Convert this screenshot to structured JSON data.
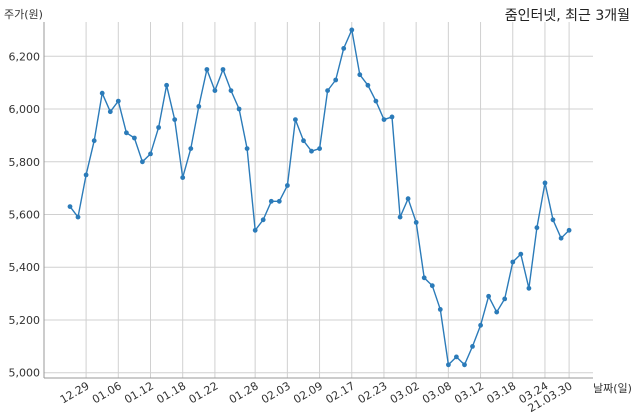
{
  "chart_data": {
    "type": "line",
    "title": "줌인터넷, 최근 3개월",
    "ylabel": "주가(원)",
    "xlabel": "날짜(일)",
    "ylim": [
      4980,
      6330
    ],
    "yticks": [
      5000,
      5200,
      5400,
      5600,
      5800,
      6000,
      6200
    ],
    "ytick_labels": [
      "5,000",
      "5,200",
      "5,400",
      "5,600",
      "5,800",
      "6,000",
      "6,200"
    ],
    "xticks": [
      {
        "index": 2,
        "label": "12.29"
      },
      {
        "index": 6,
        "label": "01.06"
      },
      {
        "index": 10,
        "label": "01.12"
      },
      {
        "index": 14,
        "label": "01.18"
      },
      {
        "index": 18,
        "label": "01.22"
      },
      {
        "index": 23,
        "label": "01.28"
      },
      {
        "index": 27,
        "label": "02.03"
      },
      {
        "index": 31,
        "label": "02.09"
      },
      {
        "index": 35,
        "label": "02.17"
      },
      {
        "index": 39,
        "label": "02.23"
      },
      {
        "index": 43,
        "label": "03.02"
      },
      {
        "index": 47,
        "label": "03.08"
      },
      {
        "index": 51,
        "label": "03.12"
      },
      {
        "index": 55,
        "label": "03.18"
      },
      {
        "index": 59,
        "label": "03.24"
      },
      {
        "index": 62,
        "label": "21.03.30"
      }
    ],
    "grid": true,
    "color": "#2b7bb9",
    "series": [
      {
        "values": [
          5630,
          5590,
          5750,
          5880,
          6060,
          5990,
          6030,
          5910,
          5890,
          5800,
          5830,
          5930,
          6090,
          5960,
          5740,
          5850,
          6010,
          6150,
          6070,
          6150,
          6070,
          6000,
          5850,
          5540,
          5580,
          5650,
          5650,
          5710,
          5960,
          5880,
          5840,
          5850,
          6070,
          6110,
          6230,
          6300,
          6130,
          6090,
          6030,
          5960,
          5970,
          5590,
          5660,
          5570,
          5360,
          5330,
          5240,
          5030,
          5060,
          5030,
          5100,
          5180,
          5290,
          5230,
          5280,
          5420,
          5450,
          5320,
          5550,
          5720,
          5580,
          5510,
          5540
        ]
      }
    ]
  }
}
